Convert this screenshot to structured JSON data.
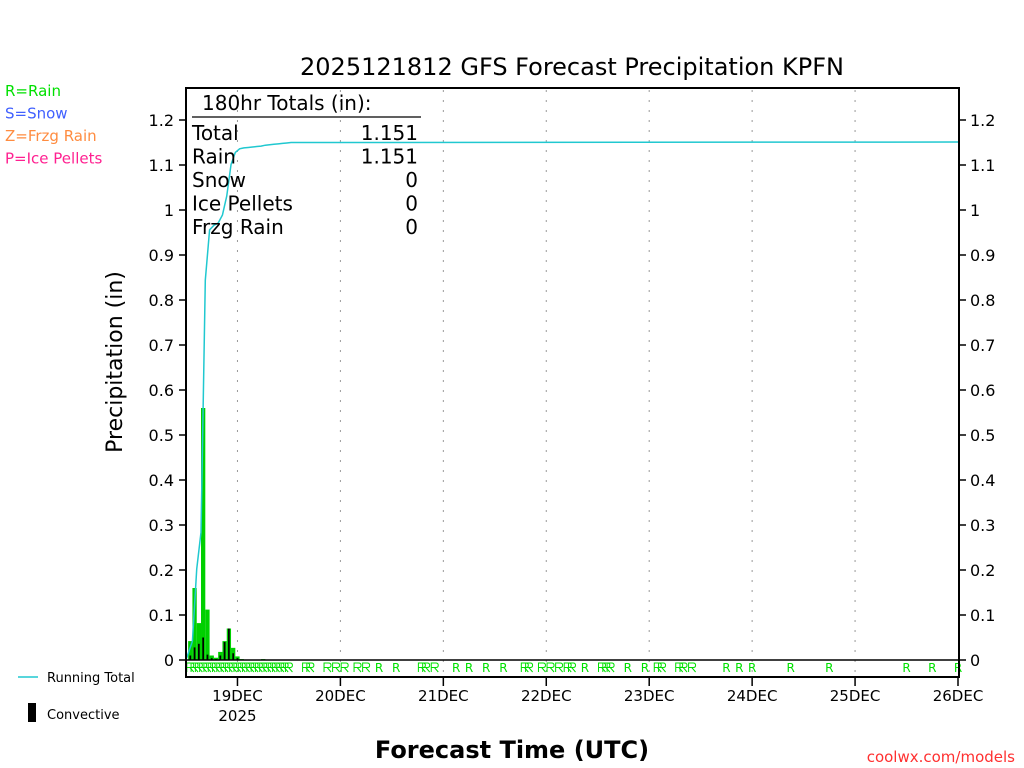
{
  "chart_data": {
    "type": "bar",
    "title": "2025121812 GFS Forecast Precipitation KPFN",
    "ylabel": "Precipitation (in)",
    "xlabel": "Forecast Time (UTC)",
    "ylim": [
      0,
      1.2
    ],
    "yticks": [
      "0",
      "0.1",
      "0.2",
      "0.3",
      "0.4",
      "0.5",
      "0.6",
      "0.7",
      "0.8",
      "0.9",
      "1",
      "1.1",
      "1.2"
    ],
    "xlim_hours": [
      0,
      180
    ],
    "xticks": [
      {
        "hour": 12,
        "label": "19DEC",
        "sub": "2025"
      },
      {
        "hour": 36,
        "label": "20DEC"
      },
      {
        "hour": 60,
        "label": "21DEC"
      },
      {
        "hour": 84,
        "label": "22DEC"
      },
      {
        "hour": 108,
        "label": "23DEC"
      },
      {
        "hour": 132,
        "label": "24DEC"
      },
      {
        "hour": 156,
        "label": "25DEC"
      },
      {
        "hour": 180,
        "label": "26DEC"
      }
    ],
    "hourly_precip": {
      "hours": [
        1,
        2,
        3,
        4,
        5,
        6,
        7,
        8,
        9,
        10,
        11,
        12,
        13,
        14,
        15,
        16,
        17,
        18,
        19,
        20,
        21,
        22,
        23,
        24
      ],
      "total": [
        0.042,
        0.16,
        0.082,
        0.56,
        0.112,
        0.01,
        0.005,
        0.018,
        0.042,
        0.07,
        0.027,
        0.008,
        0.002,
        0.001,
        0.001,
        0.001,
        0.001,
        0.002,
        0.001,
        0.001,
        0.001,
        0.001,
        0.001,
        0.001
      ],
      "convective": [
        0.01,
        0.028,
        0.036,
        0.05,
        0.012,
        0.004,
        0.002,
        0.01,
        0.04,
        0.07,
        0.015,
        0.004,
        0.001,
        0,
        0,
        0,
        0,
        0.001,
        0,
        0,
        0,
        0,
        0,
        0
      ]
    },
    "running_total_final": 1.151,
    "ptype_markers": {
      "symbol": "R",
      "hours": [
        1,
        2,
        3,
        4,
        5,
        6,
        7,
        8,
        9,
        10,
        11,
        12,
        13,
        14,
        15,
        16,
        17,
        18,
        19,
        20,
        21,
        22,
        23,
        24,
        28,
        29,
        33,
        35,
        37,
        40,
        42,
        45,
        49,
        55,
        56,
        58,
        63,
        66,
        70,
        74,
        79,
        80,
        83,
        85,
        87,
        89,
        90,
        93,
        97,
        98,
        99,
        103,
        107,
        110,
        111,
        115,
        116,
        118,
        126,
        129,
        132,
        141,
        150,
        168,
        174,
        180
      ]
    },
    "legend": {
      "ptype": [
        {
          "label": "R=Rain",
          "color": "#00e000"
        },
        {
          "label": "S=Snow",
          "color": "#4060ff"
        },
        {
          "label": "Z=Frzg Rain",
          "color": "#ff8c40"
        },
        {
          "label": "P=Ice Pellets",
          "color": "#ff2090"
        }
      ],
      "running_total": "Running Total",
      "convective": "Convective"
    },
    "totals_box": {
      "heading": "180hr Totals (in):",
      "rows": [
        {
          "label": "Total",
          "value": "1.151"
        },
        {
          "label": "Rain",
          "value": "1.151"
        },
        {
          "label": "Snow",
          "value": "0"
        },
        {
          "label": "Ice Pellets",
          "value": "0"
        },
        {
          "label": "Frzg Rain",
          "value": "0"
        }
      ]
    },
    "colors": {
      "bar": "#00d000",
      "convective": "#000000",
      "line": "#20c8d0",
      "marker": "#00e000",
      "credit": "#ff3030"
    }
  },
  "credit": "coolwx.com/models"
}
